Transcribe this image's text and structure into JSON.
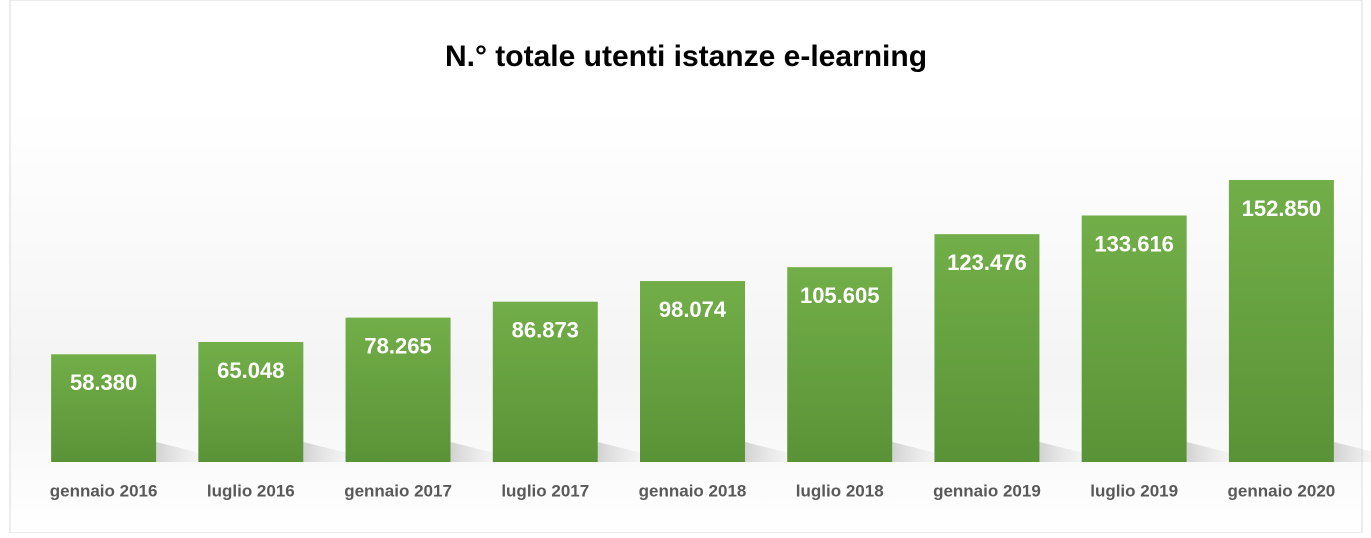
{
  "chart_data": {
    "type": "bar",
    "title": "N.° totale utenti istanze e-learning",
    "categories": [
      "gennaio 2016",
      "luglio 2016",
      "gennaio 2017",
      "luglio 2017",
      "gennaio 2018",
      "luglio 2018",
      "gennaio 2019",
      "luglio 2019",
      "gennaio 2020"
    ],
    "values": [
      58380,
      65048,
      78265,
      86873,
      98074,
      105605,
      123476,
      133616,
      152850
    ],
    "value_labels": [
      "58.380",
      "65.048",
      "78.265",
      "86.873",
      "98.074",
      "105.605",
      "123.476",
      "133.616",
      "152.850"
    ],
    "color": "#70ad47"
  }
}
